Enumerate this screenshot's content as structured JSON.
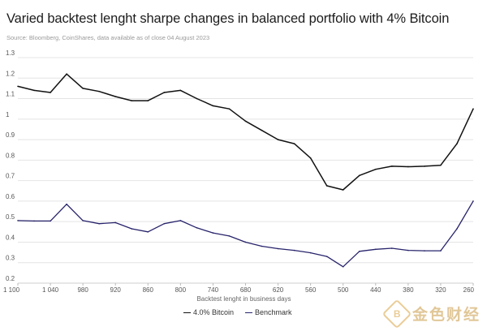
{
  "header": {
    "title": "Varied backtest lenght sharpe changes in balanced portfolio with 4% Bitcoin",
    "source": "Source: Bloomberg, CoinShares, data available as of close 04 August 2023"
  },
  "watermark": {
    "text": "金色财经",
    "logo_glyph": "B"
  },
  "chart_data": {
    "type": "line",
    "xlabel": "Backtest lenght in business days",
    "ylabel": "",
    "title": "Varied backtest lenght sharpe changes in balanced portfolio with 4% Bitcoin",
    "x": [
      1100,
      1070,
      1040,
      1010,
      980,
      950,
      920,
      890,
      860,
      830,
      800,
      770,
      740,
      710,
      680,
      650,
      620,
      590,
      560,
      530,
      500,
      470,
      440,
      410,
      380,
      350,
      320,
      290,
      260
    ],
    "xlim": [
      1100,
      260
    ],
    "xticks": [
      1100,
      1040,
      980,
      920,
      860,
      800,
      740,
      680,
      620,
      560,
      500,
      440,
      380,
      320,
      260
    ],
    "xtick_labels": [
      "1 100",
      "1 040",
      "980",
      "920",
      "860",
      "800",
      "740",
      "680",
      "620",
      "560",
      "500",
      "440",
      "380",
      "320",
      "260"
    ],
    "ylim": [
      0.2,
      1.3
    ],
    "yticks": [
      0.2,
      0.3,
      0.4,
      0.5,
      0.6,
      0.7,
      0.8,
      0.9,
      1.0,
      1.1,
      1.2,
      1.3
    ],
    "ytick_labels": [
      "0.2",
      "0.3",
      "0.4",
      "0.5",
      "0.6",
      "0.7",
      "0.8",
      "0.9",
      "1",
      "1.1",
      "1.2",
      "1.3"
    ],
    "grid": "horizontal",
    "legend_position": "bottom-center",
    "series": [
      {
        "name": "4.0% Bitcoin",
        "color": "#111111",
        "values": [
          1.16,
          1.14,
          1.13,
          1.22,
          1.15,
          1.135,
          1.11,
          1.09,
          1.09,
          1.13,
          1.14,
          1.1,
          1.065,
          1.05,
          0.99,
          0.945,
          0.9,
          0.88,
          0.81,
          0.675,
          0.655,
          0.725,
          0.755,
          0.77,
          0.768,
          0.77,
          0.775,
          0.88,
          1.05
        ]
      },
      {
        "name": "Benchmark",
        "color": "#27236b",
        "values": [
          0.505,
          0.503,
          0.503,
          0.585,
          0.505,
          0.49,
          0.495,
          0.465,
          0.45,
          0.49,
          0.505,
          0.47,
          0.445,
          0.43,
          0.4,
          0.38,
          0.368,
          0.36,
          0.348,
          0.33,
          0.28,
          0.355,
          0.365,
          0.37,
          0.36,
          0.358,
          0.358,
          0.465,
          0.6
        ]
      }
    ]
  }
}
